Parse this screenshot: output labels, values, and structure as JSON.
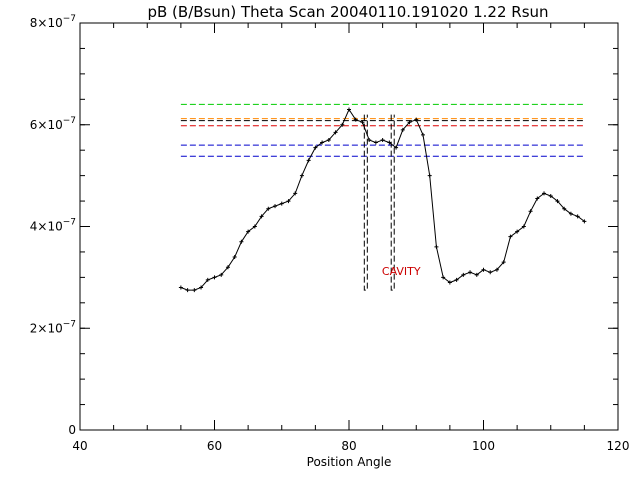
{
  "chart_data": {
    "type": "scatter",
    "title": "pB (B/Bsun) Theta Scan 20040110.191020 1.22 Rsun",
    "xlabel": "Position Angle",
    "ylabel": "",
    "xlim": [
      40,
      120
    ],
    "ylim": [
      0,
      8e-07
    ],
    "x_ticks": [
      {
        "value": 40,
        "label": "40"
      },
      {
        "value": 60,
        "label": "60"
      },
      {
        "value": 80,
        "label": "80"
      },
      {
        "value": 100,
        "label": "100"
      },
      {
        "value": 120,
        "label": "120"
      }
    ],
    "y_ticks": [
      {
        "value": 0,
        "label": "0",
        "mant": "0",
        "exp": ""
      },
      {
        "value": 2e-07,
        "label": "2×10^-7",
        "mant": "2×10",
        "exp": "−7"
      },
      {
        "value": 4e-07,
        "label": "4×10^-7",
        "mant": "4×10",
        "exp": "−7"
      },
      {
        "value": 6e-07,
        "label": "6×10^-7",
        "mant": "6×10",
        "exp": "−7"
      },
      {
        "value": 8e-07,
        "label": "8×10^-7",
        "mant": "8×10",
        "exp": "−7"
      }
    ],
    "profile": {
      "x": [
        55,
        56,
        57,
        58,
        59,
        60,
        61,
        62,
        63,
        64,
        65,
        66,
        67,
        68,
        69,
        70,
        71,
        72,
        73,
        74,
        75,
        76,
        77,
        78,
        79,
        80,
        81,
        82,
        83,
        84,
        85,
        86,
        87,
        88,
        89,
        90,
        91,
        92,
        93,
        94,
        95,
        96,
        97,
        98,
        99,
        100,
        101,
        102,
        103,
        104,
        105,
        106,
        107,
        108,
        109,
        110,
        111,
        112,
        113,
        114,
        115
      ],
      "y": [
        2.8e-07,
        2.75e-07,
        2.75e-07,
        2.8e-07,
        2.95e-07,
        3e-07,
        3.05e-07,
        3.2e-07,
        3.4e-07,
        3.7e-07,
        3.9e-07,
        4e-07,
        4.2e-07,
        4.35e-07,
        4.4e-07,
        4.45e-07,
        4.5e-07,
        4.65e-07,
        5e-07,
        5.3e-07,
        5.55e-07,
        5.65e-07,
        5.7e-07,
        5.85e-07,
        6e-07,
        6.3e-07,
        6.1e-07,
        6.05e-07,
        5.7e-07,
        5.65e-07,
        5.7e-07,
        5.65e-07,
        5.55e-07,
        5.9e-07,
        6.05e-07,
        6.1e-07,
        5.8e-07,
        5e-07,
        3.6e-07,
        3e-07,
        2.9e-07,
        2.95e-07,
        3.05e-07,
        3.1e-07,
        3.05e-07,
        3.15e-07,
        3.1e-07,
        3.15e-07,
        3.3e-07,
        3.8e-07,
        3.9e-07,
        4e-07,
        4.3e-07,
        4.55e-07,
        4.65e-07,
        4.6e-07,
        4.5e-07,
        4.35e-07,
        4.25e-07,
        4.2e-07,
        4.1e-07
      ]
    },
    "reference_lines": [
      {
        "y": 6.4e-07,
        "x_start": 55,
        "x_end": 115,
        "color": "#00cc00",
        "style": "dashed"
      },
      {
        "y": 6.12e-07,
        "x_start": 55,
        "x_end": 115,
        "color": "#ff8800",
        "style": "dashed"
      },
      {
        "y": 6.08e-07,
        "x_start": 55,
        "x_end": 115,
        "color": "#000000",
        "style": "dashed"
      },
      {
        "y": 5.98e-07,
        "x_start": 55,
        "x_end": 115,
        "color": "#dd0000",
        "style": "dashed"
      },
      {
        "y": 5.6e-07,
        "x_start": 55,
        "x_end": 115,
        "color": "#0000cc",
        "style": "dashed"
      },
      {
        "y": 5.38e-07,
        "x_start": 55,
        "x_end": 115,
        "color": "#0000cc",
        "style": "dashed"
      }
    ],
    "cavity_bounds": [
      {
        "x": 82.5,
        "y_top": 6.2e-07,
        "y_bottom": 2.75e-07
      },
      {
        "x": 86.5,
        "y_top": 6.2e-07,
        "y_bottom": 2.75e-07
      }
    ],
    "annotations": [
      {
        "text": "CAVITY",
        "x": 84,
        "y": 3.05e-07,
        "color": "#cc0000"
      }
    ],
    "grid": false,
    "legend": "none"
  }
}
